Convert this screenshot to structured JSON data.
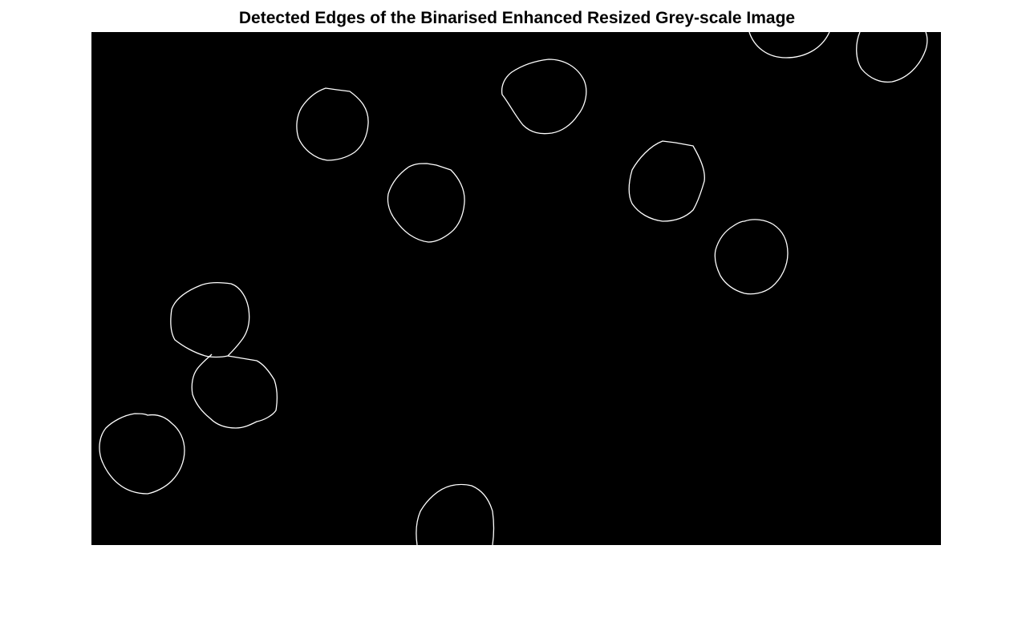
{
  "figure": {
    "title": "Detected Edges of the Binarised Enhanced Resized Grey-scale Image"
  },
  "image": {
    "background_color": "#000000",
    "edge_color": "#ffffff",
    "content": "binary edge map of cell outlines"
  },
  "colors": {
    "page_background": "#ffffff",
    "title_text": "#000000"
  }
}
